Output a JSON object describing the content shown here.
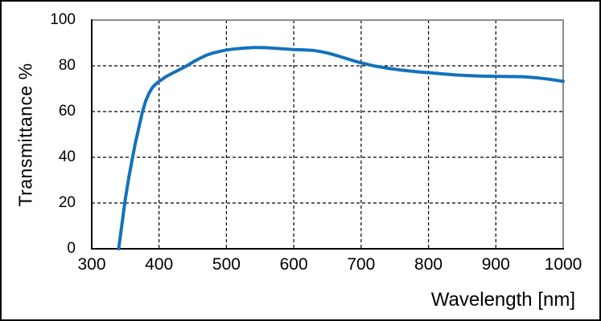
{
  "chart_data": {
    "type": "line",
    "title": "",
    "xlabel": "Wavelength [nm]",
    "ylabel": "Transmittance %",
    "xlim": [
      300,
      1000
    ],
    "ylim": [
      0,
      100
    ],
    "x_ticks": [
      300,
      400,
      500,
      600,
      700,
      800,
      900,
      1000
    ],
    "y_ticks": [
      0,
      20,
      40,
      60,
      80,
      100
    ],
    "grid": "dashed-black-interior",
    "legend_position": "none",
    "series": [
      {
        "name": "transmittance-curve",
        "color": "#1272bc",
        "points": [
          [
            340,
            0
          ],
          [
            345,
            11
          ],
          [
            350,
            22
          ],
          [
            355,
            31
          ],
          [
            360,
            39
          ],
          [
            365,
            46.5
          ],
          [
            370,
            53
          ],
          [
            375,
            59.5
          ],
          [
            380,
            64.5
          ],
          [
            385,
            68
          ],
          [
            390,
            70.5
          ],
          [
            395,
            72
          ],
          [
            400,
            73.2
          ],
          [
            410,
            75.2
          ],
          [
            420,
            76.8
          ],
          [
            430,
            78.3
          ],
          [
            440,
            79.8
          ],
          [
            450,
            81.6
          ],
          [
            460,
            83.2
          ],
          [
            470,
            84.6
          ],
          [
            480,
            85.6
          ],
          [
            490,
            86.3
          ],
          [
            500,
            86.9
          ],
          [
            510,
            87.3
          ],
          [
            520,
            87.6
          ],
          [
            530,
            87.8
          ],
          [
            540,
            88
          ],
          [
            550,
            88
          ],
          [
            560,
            87.9
          ],
          [
            570,
            87.7
          ],
          [
            580,
            87.5
          ],
          [
            590,
            87.3
          ],
          [
            600,
            87.1
          ],
          [
            610,
            87
          ],
          [
            620,
            86.9
          ],
          [
            630,
            86.7
          ],
          [
            640,
            86.2
          ],
          [
            650,
            85.6
          ],
          [
            660,
            84.8
          ],
          [
            670,
            83.9
          ],
          [
            680,
            83
          ],
          [
            690,
            82.1
          ],
          [
            700,
            81.3
          ],
          [
            710,
            80.6
          ],
          [
            720,
            79.9
          ],
          [
            730,
            79.4
          ],
          [
            740,
            78.9
          ],
          [
            750,
            78.5
          ],
          [
            760,
            78.1
          ],
          [
            770,
            77.8
          ],
          [
            780,
            77.5
          ],
          [
            790,
            77.2
          ],
          [
            800,
            77
          ],
          [
            820,
            76.5
          ],
          [
            840,
            76
          ],
          [
            860,
            75.7
          ],
          [
            880,
            75.5
          ],
          [
            900,
            75.4
          ],
          [
            920,
            75.3
          ],
          [
            940,
            75.2
          ],
          [
            960,
            74.8
          ],
          [
            980,
            74.1
          ],
          [
            1000,
            73.2
          ]
        ]
      }
    ]
  },
  "colors": {
    "line": "#1272bc",
    "axis": "#000000",
    "frame_top_right": "#8c8c8c",
    "gridline": "#000000",
    "text": "#000000",
    "background": "#ffffff",
    "outer_border": "#000000"
  }
}
